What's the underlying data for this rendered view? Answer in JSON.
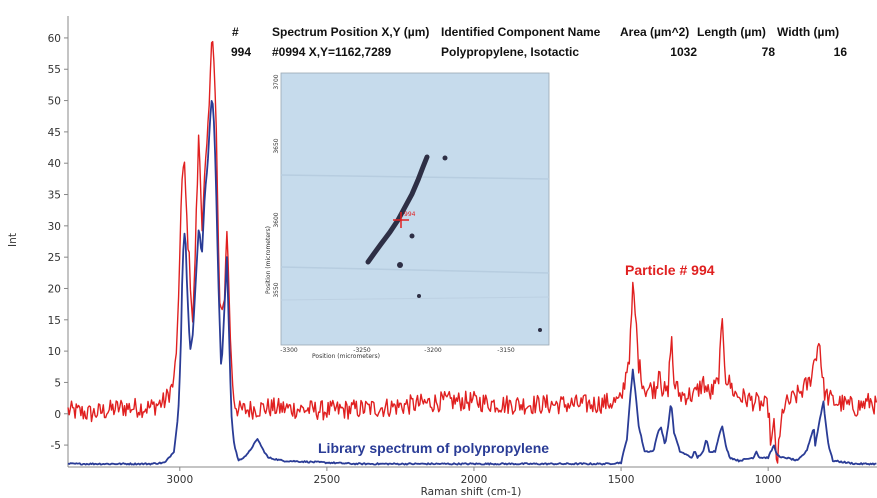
{
  "chart_data": {
    "type": "line",
    "xlabel": "Raman shift (cm-1)",
    "ylabel": "Int",
    "xlim": [
      3380,
      630
    ],
    "ylim": [
      -8.5,
      63.5
    ],
    "xticks": [
      3000,
      2500,
      2000,
      1500,
      1000
    ],
    "yticks": [
      -5,
      0,
      5,
      10,
      15,
      20,
      25,
      30,
      35,
      40,
      45,
      50,
      55,
      60
    ],
    "grid": false,
    "series": [
      {
        "name": "Particle # 994",
        "color": "#e02020",
        "points": [
          [
            3380,
            0.5
          ],
          [
            3300,
            0
          ],
          [
            3200,
            1
          ],
          [
            3100,
            1
          ],
          [
            3050,
            2
          ],
          [
            3020,
            5
          ],
          [
            3005,
            15
          ],
          [
            2995,
            36
          ],
          [
            2985,
            40
          ],
          [
            2975,
            30
          ],
          [
            2965,
            22
          ],
          [
            2955,
            14
          ],
          [
            2945,
            30
          ],
          [
            2935,
            45
          ],
          [
            2925,
            30
          ],
          [
            2915,
            38
          ],
          [
            2905,
            44
          ],
          [
            2897,
            52
          ],
          [
            2890,
            63
          ],
          [
            2883,
            56
          ],
          [
            2876,
            45
          ],
          [
            2870,
            30
          ],
          [
            2865,
            18
          ],
          [
            2855,
            15
          ],
          [
            2847,
            20
          ],
          [
            2840,
            30
          ],
          [
            2833,
            20
          ],
          [
            2825,
            8
          ],
          [
            2815,
            2
          ],
          [
            2800,
            0.5
          ],
          [
            2700,
            1
          ],
          [
            2500,
            0.5
          ],
          [
            2300,
            1
          ],
          [
            2100,
            2
          ],
          [
            2000,
            2
          ],
          [
            1900,
            1.5
          ],
          [
            1800,
            1.5
          ],
          [
            1600,
            1.5
          ],
          [
            1500,
            2
          ],
          [
            1470,
            10
          ],
          [
            1460,
            20
          ],
          [
            1450,
            15
          ],
          [
            1440,
            8
          ],
          [
            1420,
            4
          ],
          [
            1380,
            4
          ],
          [
            1370,
            8
          ],
          [
            1360,
            4
          ],
          [
            1340,
            3
          ],
          [
            1330,
            13
          ],
          [
            1320,
            5
          ],
          [
            1300,
            3
          ],
          [
            1250,
            3
          ],
          [
            1220,
            5
          ],
          [
            1200,
            3
          ],
          [
            1170,
            5
          ],
          [
            1155,
            15
          ],
          [
            1145,
            6
          ],
          [
            1110,
            3
          ],
          [
            1050,
            2
          ],
          [
            1000,
            1
          ],
          [
            990,
            -5
          ],
          [
            980,
            -2
          ],
          [
            970,
            -8
          ],
          [
            960,
            -4
          ],
          [
            950,
            1
          ],
          [
            900,
            3
          ],
          [
            860,
            5
          ],
          [
            845,
            8
          ],
          [
            835,
            10
          ],
          [
            825,
            12
          ],
          [
            815,
            5
          ],
          [
            805,
            3
          ],
          [
            780,
            2
          ],
          [
            700,
            1
          ],
          [
            650,
            2
          ],
          [
            630,
            1
          ]
        ]
      },
      {
        "name": "Library spectrum of polypropylene",
        "color": "#2a3c96",
        "points": [
          [
            3380,
            -8
          ],
          [
            3300,
            -8
          ],
          [
            3100,
            -8
          ],
          [
            3050,
            -7.8
          ],
          [
            3020,
            -6
          ],
          [
            3005,
            0
          ],
          [
            2997,
            10
          ],
          [
            2990,
            25
          ],
          [
            2982,
            30
          ],
          [
            2975,
            20
          ],
          [
            2965,
            10
          ],
          [
            2955,
            13
          ],
          [
            2945,
            22
          ],
          [
            2935,
            30
          ],
          [
            2925,
            25
          ],
          [
            2915,
            35
          ],
          [
            2905,
            40
          ],
          [
            2897,
            47
          ],
          [
            2890,
            51
          ],
          [
            2882,
            45
          ],
          [
            2875,
            33
          ],
          [
            2868,
            20
          ],
          [
            2860,
            8
          ],
          [
            2855,
            10
          ],
          [
            2848,
            17
          ],
          [
            2840,
            25
          ],
          [
            2832,
            12
          ],
          [
            2825,
            0
          ],
          [
            2815,
            -5
          ],
          [
            2800,
            -7.5
          ],
          [
            2770,
            -6.5
          ],
          [
            2750,
            -5
          ],
          [
            2735,
            -4
          ],
          [
            2720,
            -5.5
          ],
          [
            2700,
            -7
          ],
          [
            2650,
            -7.5
          ],
          [
            2400,
            -8
          ],
          [
            1550,
            -8
          ],
          [
            1500,
            -7.8
          ],
          [
            1480,
            -4
          ],
          [
            1470,
            2
          ],
          [
            1460,
            7
          ],
          [
            1450,
            3
          ],
          [
            1440,
            -2
          ],
          [
            1420,
            -6
          ],
          [
            1390,
            -6
          ],
          [
            1375,
            -3
          ],
          [
            1365,
            -2
          ],
          [
            1350,
            -5
          ],
          [
            1340,
            -2
          ],
          [
            1330,
            2
          ],
          [
            1320,
            -3
          ],
          [
            1300,
            -6
          ],
          [
            1260,
            -7
          ],
          [
            1250,
            -6
          ],
          [
            1240,
            -7
          ],
          [
            1220,
            -6
          ],
          [
            1210,
            -4
          ],
          [
            1200,
            -6
          ],
          [
            1180,
            -6
          ],
          [
            1165,
            -3
          ],
          [
            1155,
            -2
          ],
          [
            1145,
            -5
          ],
          [
            1130,
            -7
          ],
          [
            1100,
            -7.5
          ],
          [
            1050,
            -7
          ],
          [
            1040,
            -6
          ],
          [
            1030,
            -7
          ],
          [
            1000,
            -7
          ],
          [
            990,
            -6
          ],
          [
            980,
            -5
          ],
          [
            975,
            -6
          ],
          [
            960,
            -7
          ],
          [
            940,
            -7
          ],
          [
            900,
            -7.5
          ],
          [
            870,
            -6
          ],
          [
            850,
            -3
          ],
          [
            845,
            -2
          ],
          [
            840,
            -5
          ],
          [
            825,
            -1
          ],
          [
            812,
            2
          ],
          [
            808,
            0
          ],
          [
            795,
            -5
          ],
          [
            780,
            -7.5
          ],
          [
            700,
            -8
          ],
          [
            630,
            -8
          ]
        ]
      }
    ],
    "annotations": {
      "particle_label": "Particle # 994",
      "library_label": "Library spectrum of polypropylene"
    }
  },
  "table": {
    "headers": [
      "#",
      "Spectrum Position X,Y (µm)",
      "Identified Component Name",
      "Area (µm^2)",
      "Length (µm)",
      "Width (µm)"
    ],
    "row": [
      "994",
      "#0994 X,Y=1162,7289",
      "Polypropylene, Isotactic",
      "1032",
      "78",
      "16"
    ]
  },
  "inset": {
    "xlabel": "Position (micrometers)",
    "ylabel": "Position (micrometers)",
    "xticks": [
      "-3300",
      "-3250",
      "-3200",
      "-3150"
    ],
    "yticks": [
      "3700",
      "3650",
      "3600",
      "3550"
    ],
    "marker_label": "994",
    "colors": {
      "background": "#c8dcee",
      "particle": "#2e2f45",
      "marker": "#e02020"
    }
  }
}
